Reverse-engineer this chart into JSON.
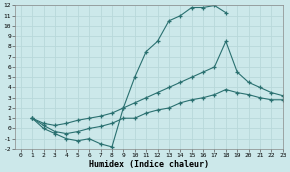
{
  "xlabel": "Humidex (Indice chaleur)",
  "xlim": [
    -0.5,
    23
  ],
  "ylim": [
    -2,
    12
  ],
  "xticks": [
    0,
    1,
    2,
    3,
    4,
    5,
    6,
    7,
    8,
    9,
    10,
    11,
    12,
    13,
    14,
    15,
    16,
    17,
    18,
    19,
    20,
    21,
    22,
    23
  ],
  "yticks": [
    -2,
    -1,
    0,
    1,
    2,
    3,
    4,
    5,
    6,
    7,
    8,
    9,
    10,
    11,
    12
  ],
  "bg_color": "#cce8ea",
  "line_color": "#2a7070",
  "grid_color": "#b8d8da",
  "curve1_x": [
    1,
    2,
    3,
    4,
    5,
    6,
    7,
    8,
    9,
    10,
    11,
    12,
    13,
    14,
    15,
    16,
    17,
    18
  ],
  "curve1_y": [
    1,
    0,
    -0.5,
    -1,
    -1.2,
    -1.0,
    -1.5,
    -1.8,
    2.0,
    5.0,
    7.5,
    8.5,
    10.5,
    11.0,
    11.8,
    11.8,
    12.0,
    11.3
  ],
  "curve2_x": [
    1,
    2,
    3,
    4,
    5,
    6,
    7,
    8,
    9,
    10,
    11,
    12,
    13,
    14,
    15,
    16,
    17,
    18,
    19,
    20,
    21,
    22,
    23
  ],
  "curve2_y": [
    1.0,
    0.5,
    0.3,
    0.5,
    0.8,
    1.0,
    1.2,
    1.5,
    2.0,
    2.5,
    3.0,
    3.5,
    4.0,
    4.5,
    5.0,
    5.5,
    6.0,
    8.5,
    5.5,
    4.5,
    4.0,
    3.5,
    3.2
  ],
  "curve3_x": [
    1,
    2,
    3,
    4,
    5,
    6,
    7,
    8,
    9,
    10,
    11,
    12,
    13,
    14,
    15,
    16,
    17,
    18,
    19,
    20,
    21,
    22,
    23
  ],
  "curve3_y": [
    1.0,
    0.3,
    -0.3,
    -0.5,
    -0.3,
    0.0,
    0.2,
    0.5,
    1.0,
    1.0,
    1.5,
    1.8,
    2.0,
    2.5,
    2.8,
    3.0,
    3.3,
    3.8,
    3.5,
    3.3,
    3.0,
    2.8,
    2.8
  ]
}
